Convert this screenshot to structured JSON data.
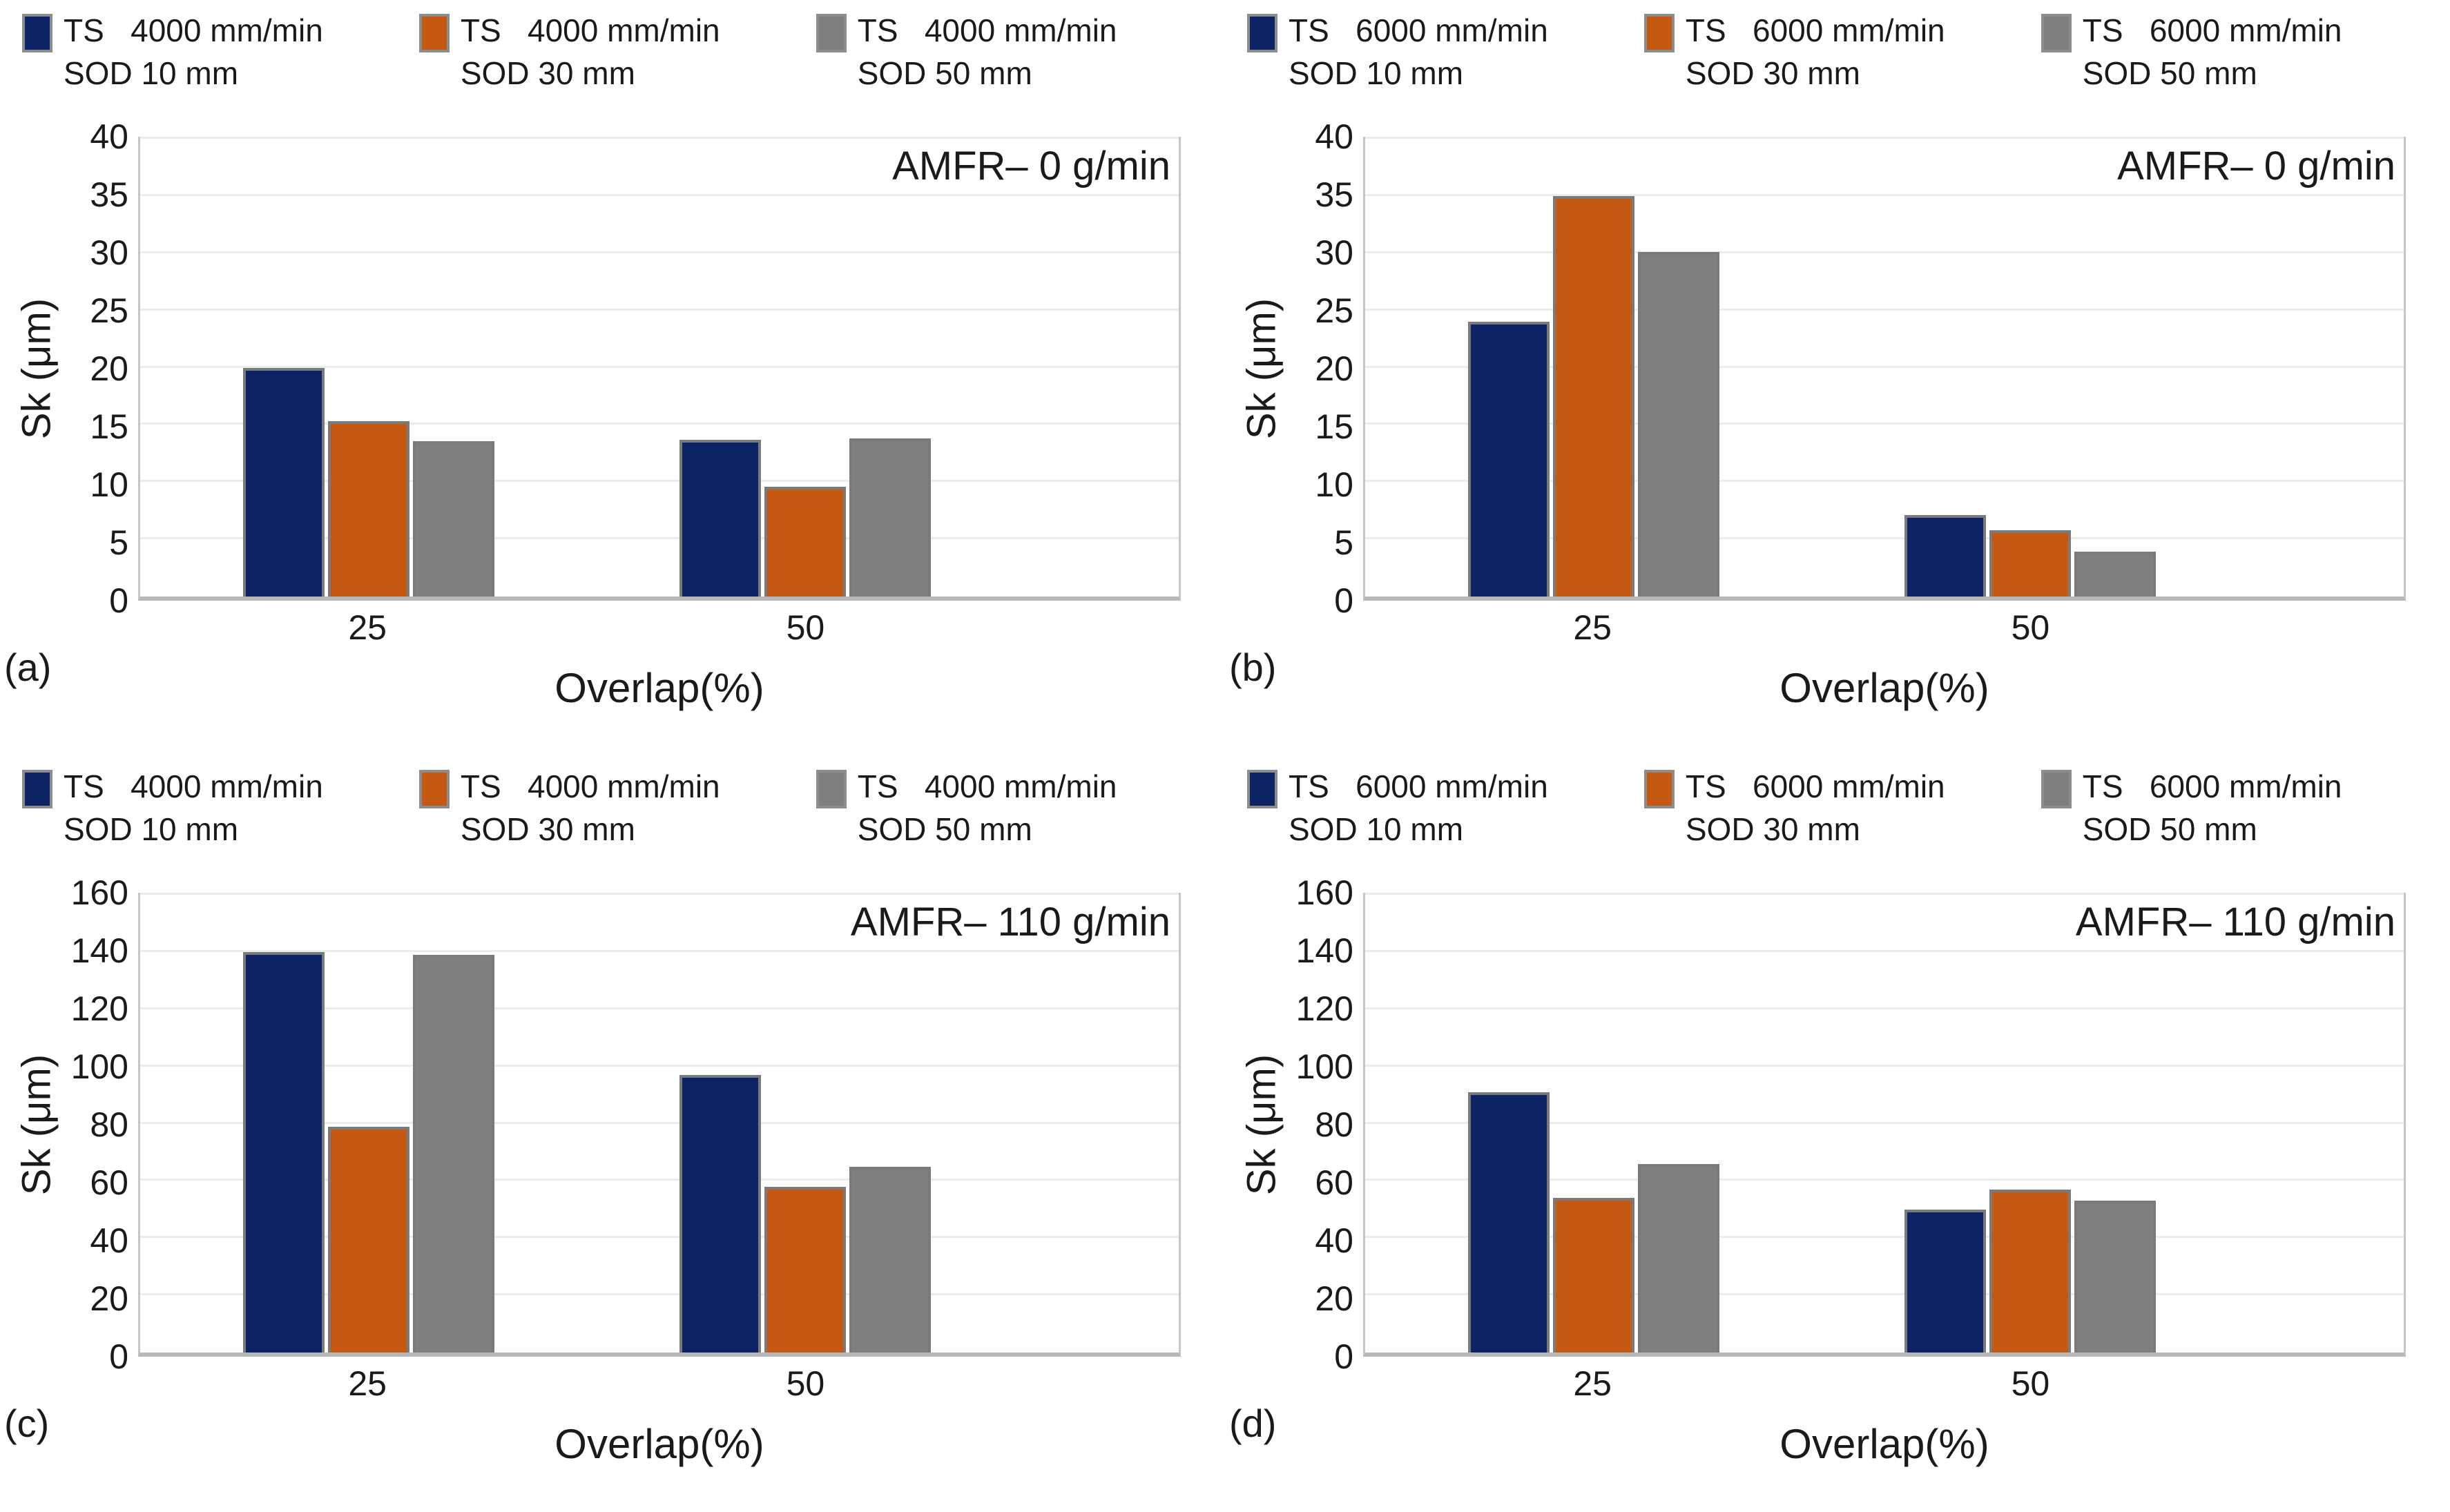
{
  "figure": {
    "y_axis_title": "Sk (μm)",
    "x_axis_title": "Overlap(%)",
    "series_colors": {
      "sod10": "#0c2366",
      "sod30": "#c65911",
      "sod50": "#7f7f7f"
    },
    "grid_color": "#ececec",
    "panels": [
      {
        "label": "(a)",
        "annotation": "AMFR– 0 g/min",
        "legend": [
          {
            "line1": "TS   4000 mm/min",
            "line2": "SOD 10 mm",
            "color": "#0c2366"
          },
          {
            "line1": "TS   4000 mm/min",
            "line2": "SOD 30 mm",
            "color": "#c65911"
          },
          {
            "line1": "TS   4000 mm/min",
            "line2": "SOD 50 mm",
            "color": "#7f7f7f"
          }
        ],
        "chart_data": {
          "type": "bar",
          "title": "AMFR– 0 g/min",
          "categories": [
            "25",
            "50"
          ],
          "series": [
            {
              "name": "TS 4000 mm/min SOD 10 mm",
              "color": "#0c2366",
              "values": [
                20,
                13.7
              ]
            },
            {
              "name": "TS 4000 mm/min SOD 30 mm",
              "color": "#c65911",
              "values": [
                15.3,
                9.6
              ]
            },
            {
              "name": "TS 4000 mm/min SOD 50 mm",
              "color": "#7f7f7f",
              "values": [
                13.6,
                13.8
              ]
            }
          ],
          "xlabel": "Overlap(%)",
          "ylabel": "Sk (μm)",
          "ylim": [
            0,
            40
          ],
          "ytick_step": 5,
          "grid": true,
          "legend_position": "top"
        }
      },
      {
        "label": "(b)",
        "annotation": "AMFR– 0 g/min",
        "legend": [
          {
            "line1": "TS   6000 mm/min",
            "line2": "SOD 10 mm",
            "color": "#0c2366"
          },
          {
            "line1": "TS   6000 mm/min",
            "line2": "SOD 30 mm",
            "color": "#c65911"
          },
          {
            "line1": "TS   6000 mm/min",
            "line2": "SOD 50 mm",
            "color": "#7f7f7f"
          }
        ],
        "chart_data": {
          "type": "bar",
          "title": "AMFR– 0 g/min",
          "categories": [
            "25",
            "50"
          ],
          "series": [
            {
              "name": "TS 6000 mm/min SOD 10 mm",
              "color": "#0c2366",
              "values": [
                24,
                7.1
              ]
            },
            {
              "name": "TS 6000 mm/min SOD 30 mm",
              "color": "#c65911",
              "values": [
                35,
                5.8
              ]
            },
            {
              "name": "TS 6000 mm/min SOD 50 mm",
              "color": "#7f7f7f",
              "values": [
                30.1,
                3.9
              ]
            }
          ],
          "xlabel": "Overlap(%)",
          "ylabel": "Sk (μm)",
          "ylim": [
            0,
            40
          ],
          "ytick_step": 5,
          "grid": true,
          "legend_position": "top"
        }
      },
      {
        "label": "(c)",
        "annotation": "AMFR– 110 g/min",
        "legend": [
          {
            "line1": "TS   4000 mm/min",
            "line2": "SOD 10 mm",
            "color": "#0c2366"
          },
          {
            "line1": "TS   4000 mm/min",
            "line2": "SOD 30 mm",
            "color": "#c65911"
          },
          {
            "line1": "TS   4000 mm/min",
            "line2": "SOD 50 mm",
            "color": "#7f7f7f"
          }
        ],
        "chart_data": {
          "type": "bar",
          "title": "AMFR– 110 g/min",
          "categories": [
            "25",
            "50"
          ],
          "series": [
            {
              "name": "TS 4000 mm/min SOD 10 mm",
              "color": "#0c2366",
              "values": [
                140,
                97
              ]
            },
            {
              "name": "TS 4000 mm/min SOD 30 mm",
              "color": "#c65911",
              "values": [
                79,
                58
              ]
            },
            {
              "name": "TS 4000 mm/min SOD 50 mm",
              "color": "#7f7f7f",
              "values": [
                139,
                65
              ]
            }
          ],
          "xlabel": "Overlap(%)",
          "ylabel": "Sk (μm)",
          "ylim": [
            0,
            160
          ],
          "ytick_step": 20,
          "grid": true,
          "legend_position": "top"
        }
      },
      {
        "label": "(d)",
        "annotation": "AMFR– 110 g/min",
        "legend": [
          {
            "line1": "TS   6000 mm/min",
            "line2": "SOD 10 mm",
            "color": "#0c2366"
          },
          {
            "line1": "TS   6000 mm/min",
            "line2": "SOD 30 mm",
            "color": "#c65911"
          },
          {
            "line1": "TS   6000 mm/min",
            "line2": "SOD 50 mm",
            "color": "#7f7f7f"
          }
        ],
        "chart_data": {
          "type": "bar",
          "title": "AMFR– 110 g/min",
          "categories": [
            "25",
            "50"
          ],
          "series": [
            {
              "name": "TS 6000 mm/min SOD 10 mm",
              "color": "#0c2366",
              "values": [
                91,
                50
              ]
            },
            {
              "name": "TS 6000 mm/min SOD 30 mm",
              "color": "#c65911",
              "values": [
                54,
                57
              ]
            },
            {
              "name": "TS 6000 mm/min SOD 50 mm",
              "color": "#7f7f7f",
              "values": [
                66,
                53
              ]
            }
          ],
          "xlabel": "Overlap(%)",
          "ylabel": "Sk (μm)",
          "ylim": [
            0,
            160
          ],
          "ytick_step": 20,
          "grid": true,
          "legend_position": "top"
        }
      }
    ]
  }
}
